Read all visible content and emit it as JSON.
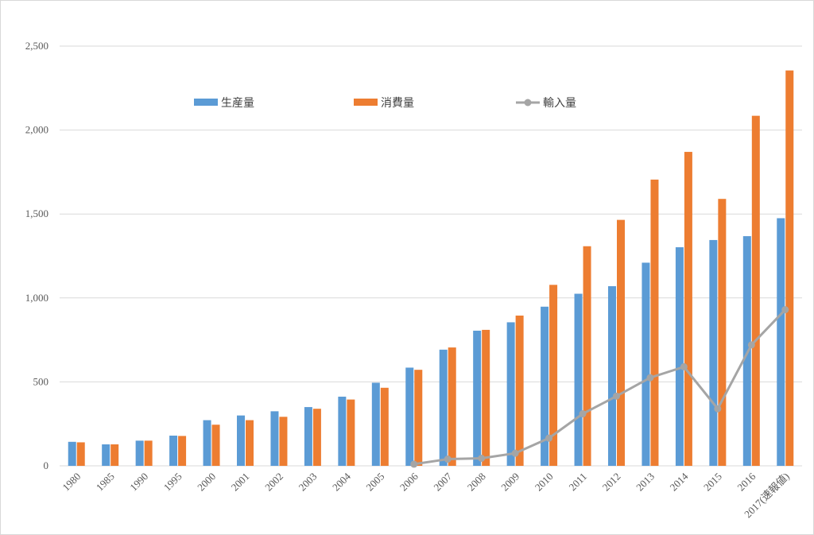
{
  "chart_data": {
    "type": "bar",
    "title": "",
    "xlabel": "",
    "ylabel": "",
    "ylim": [
      0,
      2500
    ],
    "yticks": [
      0,
      500,
      1000,
      1500,
      2000,
      2500
    ],
    "ytick_labels": [
      "0",
      "500",
      "1,000",
      "1,500",
      "2,000",
      "2,500"
    ],
    "grid": true,
    "legend_position": "top",
    "categories": [
      "1980",
      "1985",
      "1990",
      "1995",
      "2000",
      "2001",
      "2002",
      "2003",
      "2004",
      "2005",
      "2006",
      "2007",
      "2008",
      "2009",
      "2010",
      "2011",
      "2012",
      "2013",
      "2014",
      "2015",
      "2016",
      "2017(速報値)"
    ],
    "series": [
      {
        "name": "生産量",
        "kind": "bar",
        "color": "#5B9BD5",
        "values": [
          143,
          128,
          150,
          180,
          272,
          300,
          325,
          350,
          412,
          495,
          585,
          692,
          805,
          855,
          948,
          1025,
          1070,
          1210,
          1302,
          1345,
          1368,
          1475
        ]
      },
      {
        "name": "消費量",
        "kind": "bar",
        "color": "#ED7D31",
        "values": [
          140,
          128,
          150,
          178,
          245,
          272,
          292,
          340,
          395,
          465,
          572,
          705,
          810,
          895,
          1078,
          1308,
          1465,
          1705,
          1870,
          1590,
          2085,
          2355
        ]
      },
      {
        "name": "輸入量",
        "kind": "line",
        "color": "#A5A5A5",
        "values": [
          null,
          null,
          null,
          null,
          null,
          null,
          null,
          null,
          null,
          null,
          10,
          40,
          45,
          75,
          165,
          310,
          415,
          525,
          590,
          340,
          720,
          930
        ]
      }
    ]
  }
}
